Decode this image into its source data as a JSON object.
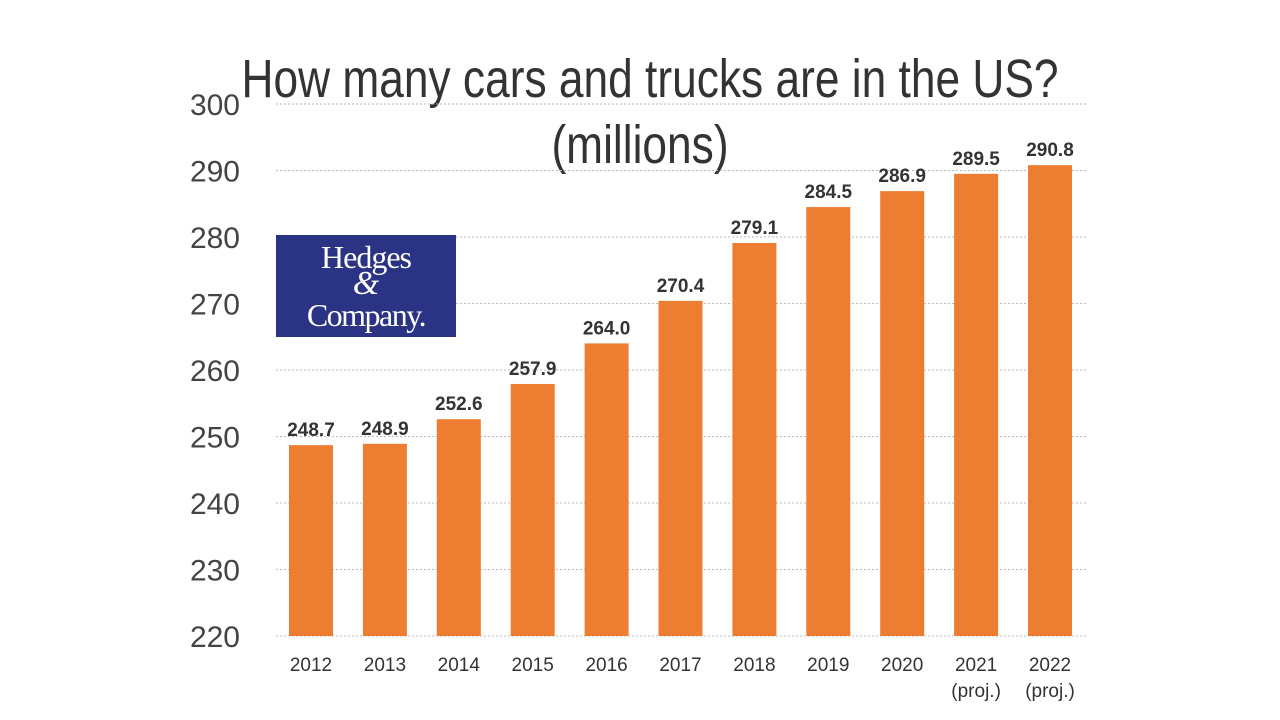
{
  "chart_data": {
    "type": "bar",
    "title": "How many cars and trucks are in the US?",
    "subtitle": "(millions)",
    "categories": [
      "2012",
      "2013",
      "2014",
      "2015",
      "2016",
      "2017",
      "2018",
      "2019",
      "2020",
      "2021",
      "2022"
    ],
    "category_notes": [
      "",
      "",
      "",
      "",
      "",
      "",
      "",
      "",
      "",
      "(proj.)",
      "(proj.)"
    ],
    "values": [
      248.7,
      248.9,
      252.6,
      257.9,
      264.0,
      270.4,
      279.1,
      284.5,
      286.9,
      289.5,
      290.8
    ],
    "value_labels": [
      "248.7",
      "248.9",
      "252.6",
      "257.9",
      "264.0",
      "270.4",
      "279.1",
      "284.5",
      "286.9",
      "289.5",
      "290.8"
    ],
    "ylim": [
      220,
      300
    ],
    "yticks": [
      "220",
      "230",
      "240",
      "250",
      "260",
      "270",
      "280",
      "290",
      "300"
    ],
    "grid": true,
    "xlabel": "",
    "ylabel": "",
    "bar_color": "#ed7d31"
  },
  "logo": {
    "line1": "Hedges",
    "amp": "&",
    "line2": "Company.",
    "color": "#2b3384"
  }
}
